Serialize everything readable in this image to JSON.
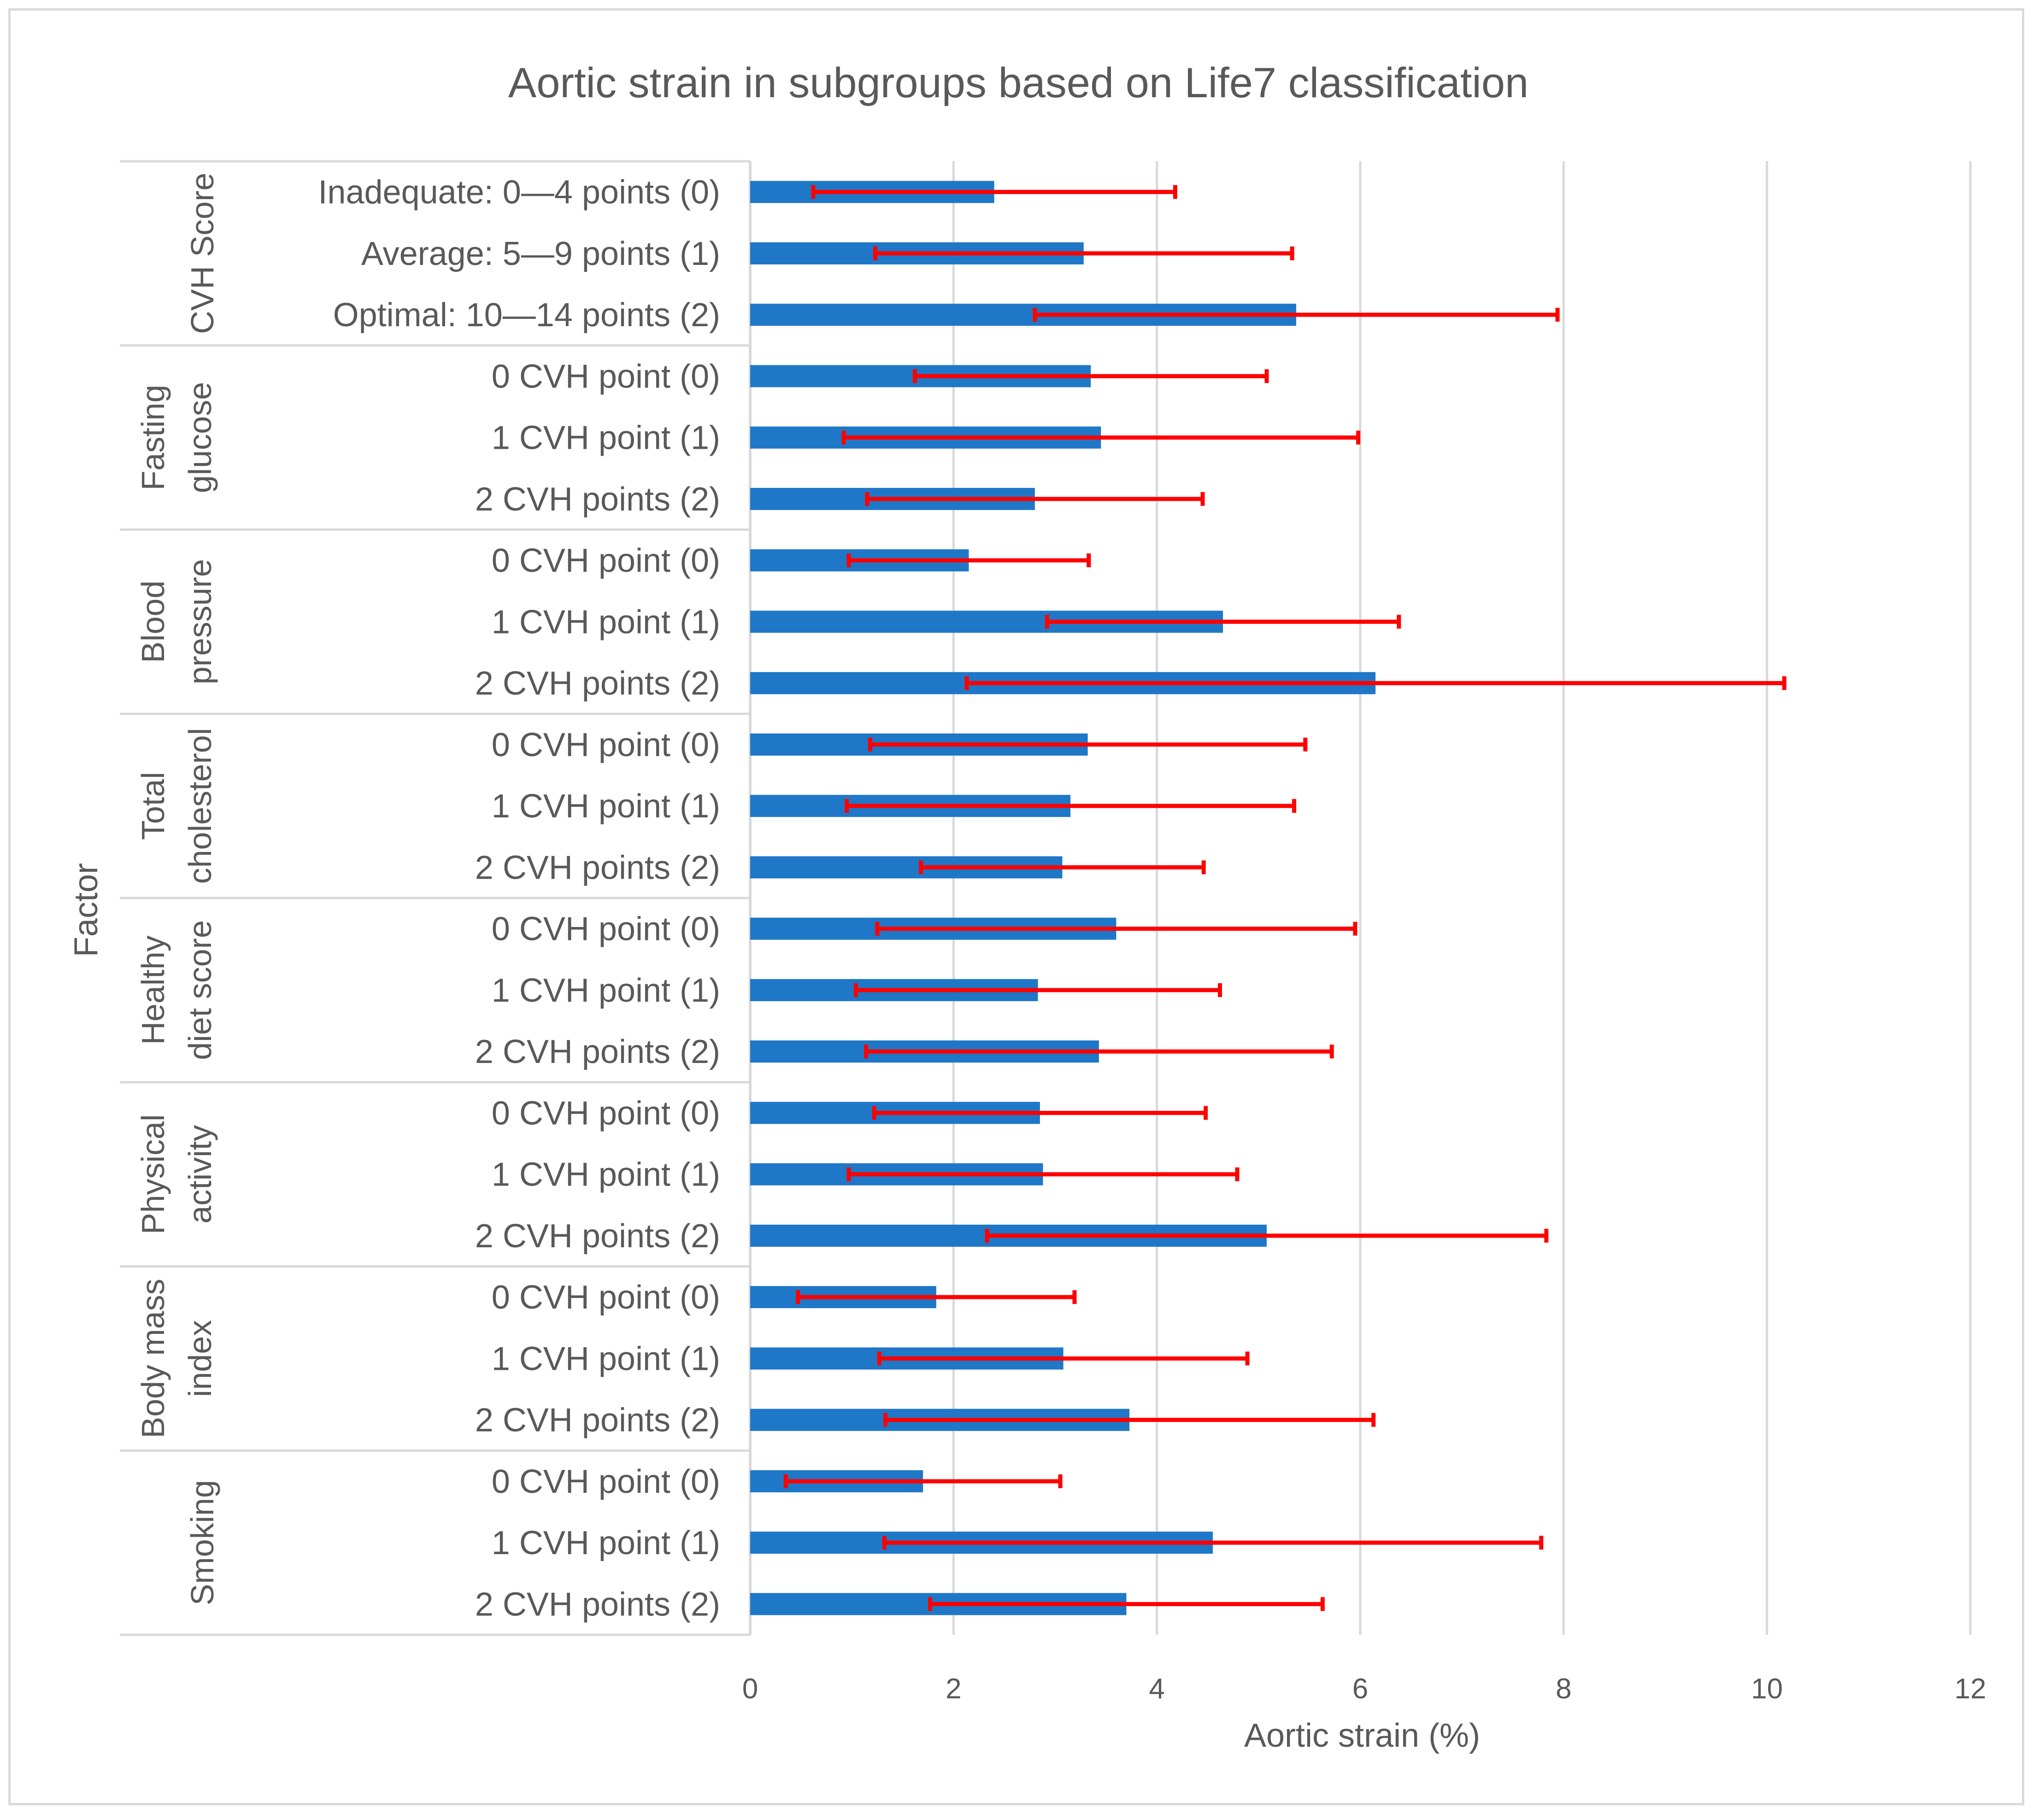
{
  "chart_data": {
    "type": "bar",
    "orientation": "horizontal",
    "title": "Aortic strain in subgroups based on Life7 classification",
    "xlabel": "Aortic strain (%)",
    "ylabel": "Factor",
    "xlim": [
      0,
      12
    ],
    "x_ticks": [
      0,
      2,
      4,
      6,
      8,
      10,
      12
    ],
    "grid": true,
    "bar_color": "#1f77c8",
    "error_color": "#ff0000",
    "groups": [
      {
        "name": "CVH Score",
        "rows": [
          {
            "label": "Inadequate: 0—4 points (0)",
            "value": 2.4,
            "err_low": 0.62,
            "err_high": 4.18
          },
          {
            "label": "Average: 5—9 points (1)",
            "value": 3.28,
            "err_low": 1.23,
            "err_high": 5.33
          },
          {
            "label": "Optimal: 10—14 points (2)",
            "value": 5.37,
            "err_low": 2.8,
            "err_high": 7.94
          }
        ]
      },
      {
        "name": "Fasting glucose",
        "rows": [
          {
            "label": "0 CVH point (0)",
            "value": 3.35,
            "err_low": 1.62,
            "err_high": 5.08
          },
          {
            "label": "1 CVH point (1)",
            "value": 3.45,
            "err_low": 0.92,
            "err_high": 5.98
          },
          {
            "label": "2 CVH points (2)",
            "value": 2.8,
            "err_low": 1.15,
            "err_high": 4.45
          }
        ]
      },
      {
        "name": "Blood pressure",
        "rows": [
          {
            "label": "0 CVH point (0)",
            "value": 2.15,
            "err_low": 0.97,
            "err_high": 3.33
          },
          {
            "label": "1 CVH point (1)",
            "value": 4.65,
            "err_low": 2.92,
            "err_high": 6.38
          },
          {
            "label": "2 CVH points (2)",
            "value": 6.15,
            "err_low": 2.13,
            "err_high": 10.17
          }
        ]
      },
      {
        "name": "Total cholesterol",
        "rows": [
          {
            "label": "0 CVH point (0)",
            "value": 3.32,
            "err_low": 1.18,
            "err_high": 5.46
          },
          {
            "label": "1 CVH point (1)",
            "value": 3.15,
            "err_low": 0.95,
            "err_high": 5.35
          },
          {
            "label": "2 CVH points (2)",
            "value": 3.07,
            "err_low": 1.68,
            "err_high": 4.46
          }
        ]
      },
      {
        "name": "Healthy diet score",
        "rows": [
          {
            "label": "0 CVH point (0)",
            "value": 3.6,
            "err_low": 1.25,
            "err_high": 5.95
          },
          {
            "label": "1 CVH point (1)",
            "value": 2.83,
            "err_low": 1.04,
            "err_high": 4.62
          },
          {
            "label": "2 CVH points (2)",
            "value": 3.43,
            "err_low": 1.14,
            "err_high": 5.72
          }
        ]
      },
      {
        "name": "Physical activity",
        "rows": [
          {
            "label": "0 CVH point (0)",
            "value": 2.85,
            "err_low": 1.22,
            "err_high": 4.48
          },
          {
            "label": "1 CVH point (1)",
            "value": 2.88,
            "err_low": 0.97,
            "err_high": 4.79
          },
          {
            "label": "2 CVH points (2)",
            "value": 5.08,
            "err_low": 2.33,
            "err_high": 7.83
          }
        ]
      },
      {
        "name": "Body mass index",
        "rows": [
          {
            "label": "0 CVH point (0)",
            "value": 1.83,
            "err_low": 0.47,
            "err_high": 3.19
          },
          {
            "label": "1 CVH point (1)",
            "value": 3.08,
            "err_low": 1.27,
            "err_high": 4.89
          },
          {
            "label": "2 CVH points (2)",
            "value": 3.73,
            "err_low": 1.33,
            "err_high": 6.13
          }
        ]
      },
      {
        "name": "Smoking",
        "rows": [
          {
            "label": "0 CVH point (0)",
            "value": 1.7,
            "err_low": 0.35,
            "err_high": 3.05
          },
          {
            "label": "1 CVH point (1)",
            "value": 4.55,
            "err_low": 1.32,
            "err_high": 7.78
          },
          {
            "label": "2 CVH points (2)",
            "value": 3.7,
            "err_low": 1.77,
            "err_high": 5.63
          }
        ]
      }
    ]
  }
}
